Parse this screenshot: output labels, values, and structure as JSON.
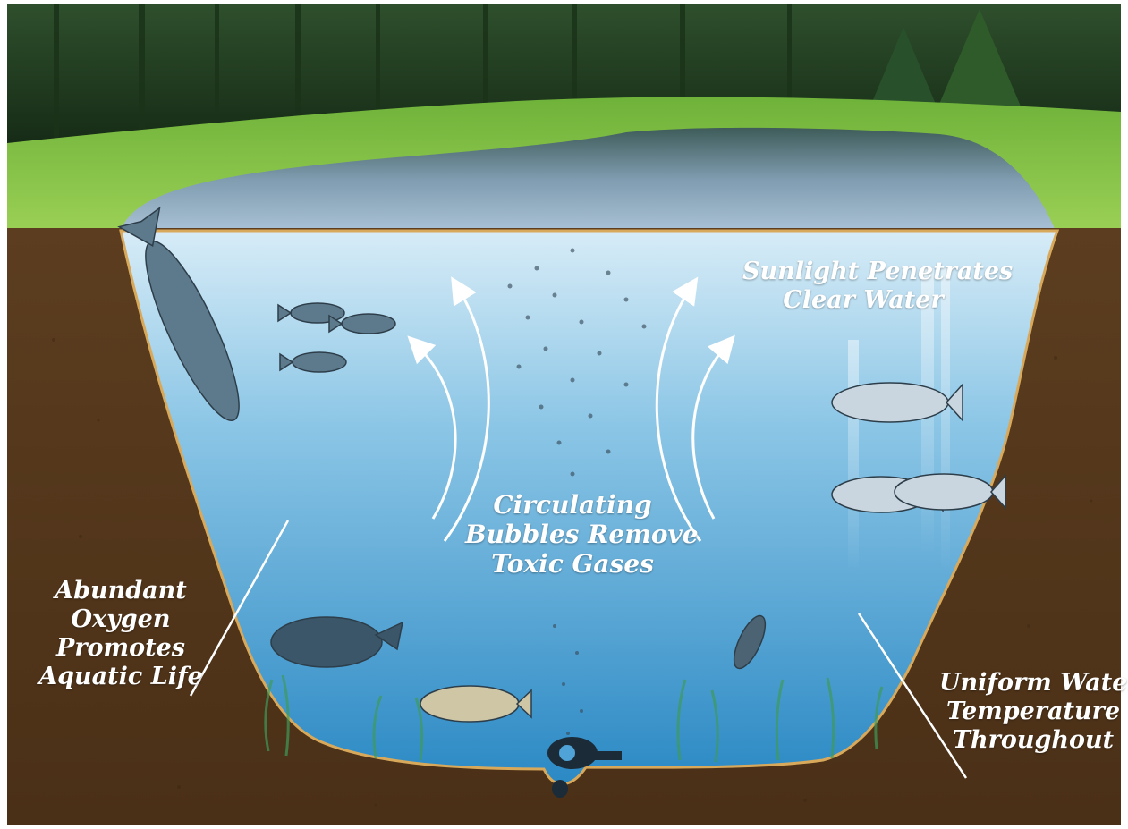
{
  "labels": {
    "sunlight": [
      "Sunlight Penetrates",
      "Clear Water"
    ],
    "circulating": [
      "Circulating",
      "Bubbles Remove",
      "Toxic Gases"
    ],
    "oxygen": [
      "Abundant",
      "Oxygen",
      "Promotes",
      "Aquatic Life"
    ],
    "uniform": [
      "Uniform Water",
      "Temperature",
      "Throughout"
    ]
  },
  "colors": {
    "sky_trees": "#1f3d22",
    "grass": "#7cbf3e",
    "pond_surface": "#5f7f95",
    "water_top": "#cfe6f3",
    "water_bottom": "#2f8fc9",
    "soil": "#5a3b1d",
    "text": "#ffffff"
  },
  "icons": [
    "fish-icon",
    "arrow-icon",
    "bubble-icon",
    "diffuser-icon",
    "seaweed-icon"
  ]
}
